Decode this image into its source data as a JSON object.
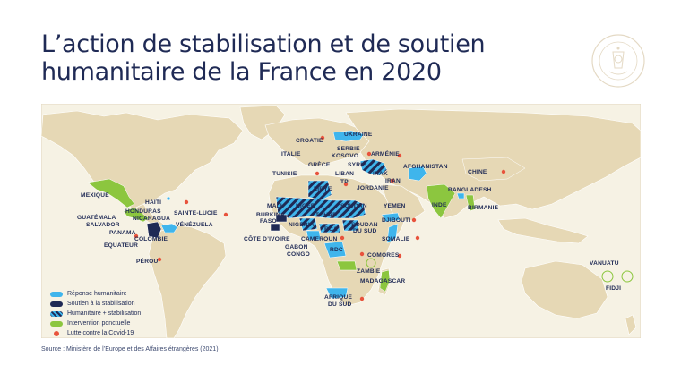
{
  "title": "L’action de stabilisation et de soutien humanitaire de la France en 2020",
  "source": "Source : Ministère de l’Europe et des Affaires étrangères (2021)",
  "colors": {
    "map_background": "#f6f2e4",
    "land": "#e6d8b5",
    "humanitarian": "#3fb5ec",
    "stabilisation": "#1f2a55",
    "punctual": "#8cc63f",
    "covid": "#e8533c",
    "text": "#1f2a55"
  },
  "legend": [
    {
      "label": "Réponse humanitaire",
      "color": "#3fb5ec",
      "kind": "swatch"
    },
    {
      "label": "Soutien à la stabilisation",
      "color": "#1f2a55",
      "kind": "swatch"
    },
    {
      "label": "Humanitaire + stabilisation",
      "color": "#3fb5ec",
      "kind": "stripes"
    },
    {
      "label": "Intervention ponctuelle",
      "color": "#8cc63f",
      "kind": "swatch"
    },
    {
      "label": "Lutte contre la Covid-19",
      "color": "#e8533c",
      "kind": "dot"
    }
  ],
  "countries": {
    "ukraine": "UKRAINE",
    "croatie": "CROATIE",
    "serbie": "SERBIE",
    "kosovo": "KOSOVO",
    "armenie": "ARMÉNIE",
    "italie": "ITALIE",
    "grece": "GRÈCE",
    "syrie": "SYRIE",
    "afghanistan": "AFGHANISTAN",
    "chine": "CHINE",
    "tunisie": "TUNISIE",
    "liban": "LIBAN",
    "irak": "IRAK",
    "iran": "IRAN",
    "tp": "TP",
    "jordanie": "JORDANIE",
    "libye": "LIBYE",
    "bangladesh": "BANGLADESH",
    "mexique": "MEXIQUE",
    "haiti": "HAÏTI",
    "inde": "INDE",
    "birmanie": "BIRMANIE",
    "honduras": "HONDURAS",
    "nicaragua": "NICARAGUA",
    "sainte_lucie": "SAINTE-LUCIE",
    "guatemala": "GUATÉMALA",
    "salvador": "SALVADOR",
    "venezuela": "VÉNÉZUELA",
    "panama": "PANAMA",
    "colombie": "COLOMBIE",
    "equateur": "ÉQUATEUR",
    "perou": "PÉROU",
    "mali": "MALI",
    "niger": "NIGER",
    "soudan": "SOUDAN",
    "yemen": "YEMEN",
    "burkina_faso": "BURKINA\nFASO",
    "tchad": "TCHAD",
    "djibouti": "DJIBOUTI",
    "nigeria": "NIGERIA",
    "rca": "RCA",
    "soudan_du_sud": "SOUDAN\nDU SUD",
    "cote_divoire": "CÔTE D’IVOIRE",
    "cameroun": "CAMEROUN",
    "somalie": "SOMALIE",
    "gabon": "GABON",
    "congo": "CONGO",
    "rdc": "RDC",
    "comores": "COMORES",
    "zambie": "ZAMBIE",
    "madagascar": "MADAGASCAR",
    "afrique_du_sud": "AFRIQUE\nDU SUD",
    "vanuatu": "VANUATU",
    "fidji": "FIDJI"
  }
}
